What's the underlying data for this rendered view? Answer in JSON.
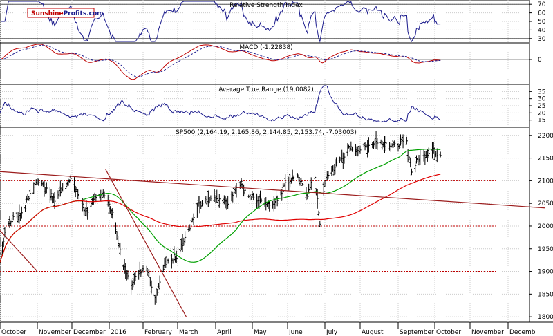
{
  "logo": {
    "part1": "Sunshine",
    "part2": "Profits.com"
  },
  "months": [
    "October",
    "November",
    "December",
    "2016",
    "February",
    "March",
    "April",
    "May",
    "June",
    "July",
    "August",
    "September",
    "October",
    "November",
    "Decemb"
  ],
  "chart_data": [
    {
      "type": "line",
      "title": "Relative Strength Index",
      "y_ticks": [
        70,
        60,
        50,
        40,
        30
      ],
      "ylim": [
        25,
        75
      ],
      "reference_lines": [
        70,
        30
      ],
      "series": [
        {
          "color": "#1a1a8c"
        }
      ]
    },
    {
      "type": "line",
      "title": "MACD (-1.22838)",
      "y_ticks": [
        0
      ],
      "ylim": [
        -60,
        40
      ],
      "series": [
        {
          "color": "#c00000"
        },
        {
          "color": "#1a1a8c",
          "style": "dashed"
        }
      ]
    },
    {
      "type": "line",
      "title": "Average True Range (19.0082)",
      "y_ticks": [
        35,
        30,
        25,
        20,
        15
      ],
      "ylim": [
        10,
        40
      ],
      "series": [
        {
          "color": "#1a1a8c"
        }
      ]
    },
    {
      "type": "ohlc",
      "title": "SP500 (2,164.19, 2,165.86, 2,144.85, 2,153.74, -7.03003)",
      "y_ticks": [
        2200,
        2150,
        2100,
        2050,
        2000,
        1950,
        1900,
        1850,
        1800
      ],
      "ylim": [
        1788,
        2218
      ],
      "horizontal_levels": [
        2100,
        2000,
        1900
      ],
      "moving_averages": [
        {
          "color": "#00a000"
        },
        {
          "color": "#e00000"
        }
      ],
      "trend_lines": [
        {
          "from": [
            "2015-10-01",
            2120
          ],
          "to": [
            "2016-12-31",
            2040
          ]
        },
        {
          "from": [
            "2015-10-01",
            1990
          ],
          "to": [
            "2015-11-01",
            1900
          ]
        },
        {
          "from": [
            "2015-12-29",
            2125
          ],
          "to": [
            "2016-03-08",
            1800
          ]
        }
      ],
      "anchors": [
        [
          "2015-10-01",
          1920
        ],
        [
          "2015-10-05",
          1987
        ],
        [
          "2015-10-12",
          2017
        ],
        [
          "2015-10-20",
          2030
        ],
        [
          "2015-10-27",
          2080
        ],
        [
          "2015-11-03",
          2105
        ],
        [
          "2015-11-09",
          2080
        ],
        [
          "2015-11-16",
          2055
        ],
        [
          "2015-11-23",
          2090
        ],
        [
          "2015-12-01",
          2100
        ],
        [
          "2015-12-09",
          2050
        ],
        [
          "2015-12-14",
          2025
        ],
        [
          "2015-12-21",
          2070
        ],
        [
          "2015-12-29",
          2070
        ],
        [
          "2016-01-05",
          2015
        ],
        [
          "2016-01-12",
          1930
        ],
        [
          "2016-01-20",
          1870
        ],
        [
          "2016-01-28",
          1900
        ],
        [
          "2016-02-04",
          1910
        ],
        [
          "2016-02-11",
          1840
        ],
        [
          "2016-02-19",
          1915
        ],
        [
          "2016-02-29",
          1935
        ],
        [
          "2016-03-08",
          1980
        ],
        [
          "2016-03-18",
          2045
        ],
        [
          "2016-03-31",
          2060
        ],
        [
          "2016-04-11",
          2050
        ],
        [
          "2016-04-20",
          2100
        ],
        [
          "2016-04-29",
          2065
        ],
        [
          "2016-05-10",
          2055
        ],
        [
          "2016-05-19",
          2045
        ],
        [
          "2016-05-31",
          2095
        ],
        [
          "2016-06-08",
          2110
        ],
        [
          "2016-06-17",
          2070
        ],
        [
          "2016-06-23",
          2110
        ],
        [
          "2016-06-27",
          2000
        ],
        [
          "2016-07-01",
          2100
        ],
        [
          "2016-07-11",
          2135
        ],
        [
          "2016-07-22",
          2170
        ],
        [
          "2016-08-01",
          2170
        ],
        [
          "2016-08-15",
          2187
        ],
        [
          "2016-08-29",
          2180
        ],
        [
          "2016-09-08",
          2182
        ],
        [
          "2016-09-12",
          2125
        ],
        [
          "2016-09-21",
          2160
        ],
        [
          "2016-09-30",
          2165
        ],
        [
          "2016-10-06",
          2158
        ]
      ]
    }
  ]
}
